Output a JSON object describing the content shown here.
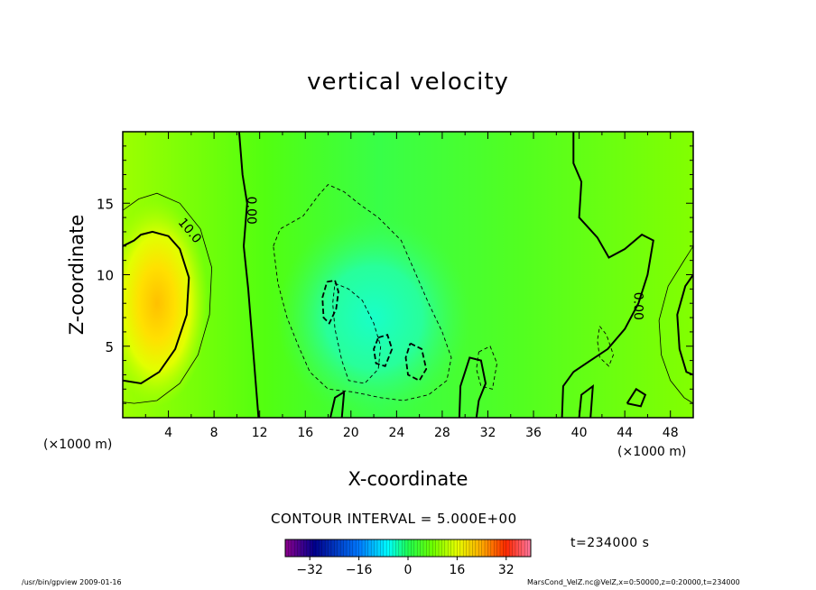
{
  "chart_data": {
    "type": "heatmap",
    "title": "vertical velocity",
    "xlabel": "X-coordinate",
    "ylabel": "Z-coordinate",
    "x_unit": "(×1000 m)",
    "z_unit": "(×1000 m)",
    "xlim": [
      0,
      50
    ],
    "ylim": [
      0,
      20
    ],
    "x_ticks": [
      4,
      8,
      12,
      16,
      20,
      24,
      28,
      32,
      36,
      40,
      44,
      48
    ],
    "y_ticks": [
      5,
      10,
      15
    ],
    "contour_labels": [
      {
        "text": "10.0",
        "x": 5.6,
        "z": 12.9
      },
      {
        "text": "0.00",
        "x": 10.9,
        "z": 14.5
      },
      {
        "text": "0.00",
        "x": 44.8,
        "z": 7.8
      }
    ],
    "contour_interval": "CONTOUR INTERVAL = 5.000E+00",
    "colorbar": {
      "min": -40,
      "max": 40,
      "tick_labels": [
        "-32",
        "-16",
        "0",
        "16",
        "32"
      ],
      "tick_values": [
        -32,
        -16,
        0,
        16,
        32
      ]
    },
    "features": [
      {
        "name": "updraft core",
        "x": 3.0,
        "z": 8.0,
        "peak": 20
      },
      {
        "name": "downdraft region",
        "x": 22.0,
        "z": 7.0,
        "peak": -9
      }
    ],
    "time_label": "t=234000 s"
  },
  "footer": {
    "left": "/usr/bin/gpview   2009-01-16",
    "right": "MarsCond_VelZ.nc@VelZ,x=0:50000,z=0:20000,t=234000"
  }
}
